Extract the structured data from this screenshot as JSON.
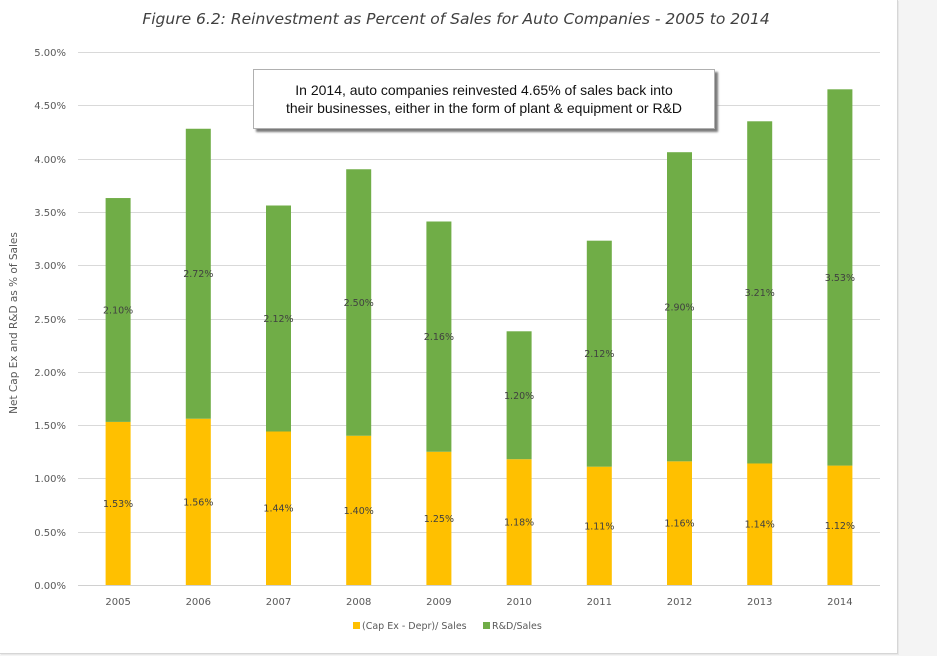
{
  "chart_data": {
    "type": "bar",
    "stacked": true,
    "title": "Figure 6.2: Reinvestment as Percent of Sales for Auto Companies - 2005 to 2014",
    "xlabel": "",
    "ylabel": "Net Cap Ex and R&D as % of Sales",
    "categories": [
      "2005",
      "2006",
      "2007",
      "2008",
      "2009",
      "2010",
      "2011",
      "2012",
      "2013",
      "2014"
    ],
    "series": [
      {
        "name": "(Cap Ex - Depr)/ Sales",
        "color": "#FFC000",
        "values": [
          1.53,
          1.56,
          1.44,
          1.4,
          1.25,
          1.18,
          1.11,
          1.16,
          1.14,
          1.12
        ],
        "labels": [
          "1.53%",
          "1.56%",
          "1.44%",
          "1.40%",
          "1.25%",
          "1.18%",
          "1.11%",
          "1.16%",
          "1.14%",
          "1.12%"
        ]
      },
      {
        "name": "R&D/Sales",
        "color": "#70AD47",
        "values": [
          2.1,
          2.72,
          2.12,
          2.5,
          2.16,
          1.2,
          2.12,
          2.9,
          3.21,
          3.53
        ],
        "labels": [
          "2.10%",
          "2.72%",
          "2.12%",
          "2.50%",
          "2.16%",
          "1.20%",
          "2.12%",
          "2.90%",
          "3.21%",
          "3.53%"
        ]
      }
    ],
    "ylim": [
      0,
      5
    ],
    "yticks": [
      0,
      0.5,
      1,
      1.5,
      2,
      2.5,
      3,
      3.5,
      4,
      4.5,
      5
    ],
    "ytick_labels": [
      "0.00%",
      "0.50%",
      "1.00%",
      "1.50%",
      "2.00%",
      "2.50%",
      "3.00%",
      "3.50%",
      "4.00%",
      "4.50%",
      "5.00%"
    ],
    "grid": true,
    "legend": {
      "placement": "bottom-center",
      "entries": [
        "(Cap Ex - Depr)/ Sales",
        "R&D/Sales"
      ]
    },
    "annotation": {
      "lines": [
        "In 2014, auto companies reinvested 4.65% of sales back into",
        "their businesses, either in the form of plant & equipment or R&D"
      ]
    }
  }
}
